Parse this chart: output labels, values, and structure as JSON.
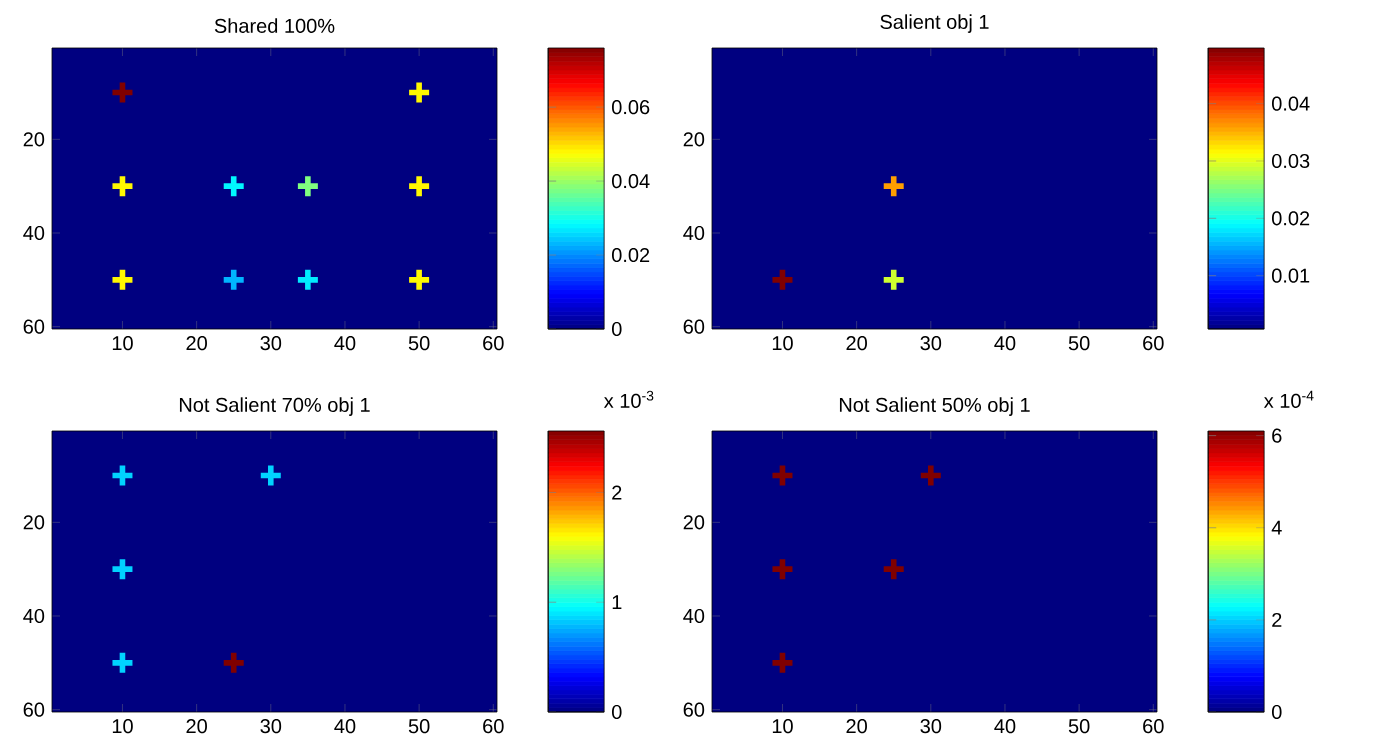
{
  "chart_data": [
    {
      "type": "scatter",
      "title": "Shared 100%",
      "marker": "cross",
      "xlim": [
        0.5,
        60.5
      ],
      "ylim": [
        60.5,
        0.5
      ],
      "xticks": [
        10,
        20,
        30,
        40,
        50,
        60
      ],
      "yticks": [
        20,
        40,
        60
      ],
      "x": [
        10,
        50,
        10,
        25,
        35,
        50,
        10,
        25,
        35,
        50
      ],
      "values": [
        10,
        10,
        30,
        30,
        30,
        30,
        50,
        50,
        50,
        50
      ],
      "cvalues": [
        0.076,
        0.048,
        0.048,
        0.028,
        0.038,
        0.048,
        0.048,
        0.023,
        0.027,
        0.048
      ],
      "clim": [
        0,
        0.076
      ],
      "cticks": [
        0,
        0.02,
        0.04,
        0.06
      ]
    },
    {
      "type": "scatter",
      "title": "Salient obj 1",
      "marker": "cross",
      "xlim": [
        0.5,
        60.5
      ],
      "ylim": [
        60.5,
        0.5
      ],
      "xticks": [
        10,
        20,
        30,
        40,
        50,
        60
      ],
      "yticks": [
        20,
        40,
        60
      ],
      "x": [
        25,
        10,
        25
      ],
      "values": [
        30,
        50,
        50
      ],
      "cvalues": [
        0.036,
        0.0497,
        0.029
      ],
      "clim": [
        0.0007,
        0.0497
      ],
      "cticks": [
        0.01,
        0.02,
        0.03,
        0.04
      ]
    },
    {
      "type": "scatter",
      "title": "Not Salient 70% obj 1",
      "marker": "cross",
      "xlim": [
        0.5,
        60.5
      ],
      "ylim": [
        60.5,
        0.5
      ],
      "xticks": [
        10,
        20,
        30,
        40,
        50,
        60
      ],
      "yticks": [
        20,
        40,
        60
      ],
      "x": [
        10,
        30,
        10,
        10,
        25
      ],
      "values": [
        10,
        10,
        30,
        50,
        50
      ],
      "cvalues": [
        0.85,
        0.85,
        0.85,
        0.85,
        2.56
      ],
      "clim": [
        0,
        2.56
      ],
      "clabel": "x 10$^{-3}$",
      "cticks": [
        0,
        1,
        2
      ]
    },
    {
      "type": "scatter",
      "title": "Not Salient 50% obj 1",
      "marker": "cross",
      "xlim": [
        0.5,
        60.5
      ],
      "ylim": [
        60.5,
        0.5
      ],
      "xticks": [
        10,
        20,
        30,
        40,
        50,
        60
      ],
      "yticks": [
        20,
        40,
        60
      ],
      "x": [
        10,
        30,
        10,
        25,
        10
      ],
      "values": [
        10,
        10,
        30,
        30,
        50
      ],
      "cvalues": [
        6.1,
        6.1,
        6.1,
        6.1,
        6.1
      ],
      "clim": [
        0,
        6.1
      ],
      "clabel": "x 10$^{-4}$",
      "cticks": [
        0,
        2,
        4,
        6
      ]
    }
  ]
}
